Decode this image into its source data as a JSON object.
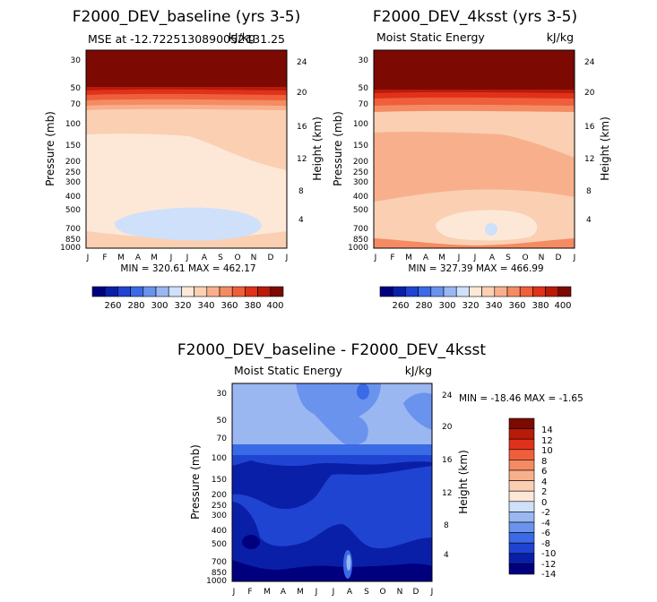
{
  "panels": {
    "baseline": {
      "title": "F2000_DEV_baseline (yrs 3-5)",
      "subtitle_left": "MSE at -12.7225130890052 ",
      "subtitle_mid": "с",
      "subtitle_right": "kJ/kg",
      "subtitle_extra": "131.25",
      "ylabel": "Pressure (mb)",
      "ylabel_right": "Height (km)",
      "minmax": "MIN = 320.61 MAX = 462.17"
    },
    "warm": {
      "title": "F2000_DEV_4ksst (yrs 3-5)",
      "subtitle_left": "Moist Static Energy",
      "subtitle_right": "kJ/kg",
      "ylabel": "Pressure (mb)",
      "ylabel_right": "Height (km)",
      "minmax": "MIN = 327.39 MAX = 466.99"
    },
    "diff": {
      "title": "F2000_DEV_baseline - F2000_DEV_4ksst",
      "subtitle_left": "Moist Static Energy",
      "subtitle_right": "kJ/kg",
      "ylabel": "Pressure (mb)",
      "ylabel_right": "Height (km)",
      "minmax": "MIN = -18.46 MAX =  -1.65"
    }
  },
  "colors": {
    "seq": [
      "#00007f",
      "#0a1fa8",
      "#1f44d2",
      "#3a6ae6",
      "#6a93ee",
      "#9ab7f2",
      "#cfe0fa",
      "#fde8d8",
      "#fbcfb2",
      "#f8b08c",
      "#f48b62",
      "#ef5f3b",
      "#e0321b",
      "#b81b08",
      "#7c0a02"
    ],
    "div": [
      "#00007f",
      "#0a1fa8",
      "#1f44d2",
      "#3a6ae6",
      "#6a93ee",
      "#9ab7f2",
      "#cfe0fa",
      "#fde8d8",
      "#fbcfb2",
      "#f8b08c",
      "#f48b62",
      "#ef5f3b",
      "#e0321b",
      "#b81b08",
      "#7c0a02"
    ]
  },
  "chart_data": [
    {
      "type": "heatmap",
      "name": "baseline",
      "x_ticks": [
        "J",
        "F",
        "M",
        "A",
        "M",
        "J",
        "J",
        "A",
        "S",
        "O",
        "N",
        "D",
        "J"
      ],
      "y_ticks": [
        "30",
        "50",
        "70",
        "100",
        "150",
        "200",
        "250",
        "300",
        "400",
        "500",
        "700",
        "850",
        "1000"
      ],
      "y_right_ticks": [
        "24",
        "20",
        "16",
        "12",
        "8",
        "4"
      ],
      "colorbar": {
        "labels": [
          "260",
          "280",
          "300",
          "320",
          "340",
          "360",
          "380",
          "400"
        ]
      },
      "min": 320.61,
      "max": 462.17
    },
    {
      "type": "heatmap",
      "name": "4ksst",
      "x_ticks": [
        "J",
        "F",
        "M",
        "A",
        "M",
        "J",
        "J",
        "A",
        "S",
        "O",
        "N",
        "D",
        "J"
      ],
      "y_ticks": [
        "30",
        "50",
        "70",
        "100",
        "150",
        "200",
        "250",
        "300",
        "400",
        "500",
        "700",
        "850",
        "1000"
      ],
      "y_right_ticks": [
        "24",
        "20",
        "16",
        "12",
        "8",
        "4"
      ],
      "colorbar": {
        "labels": [
          "260",
          "280",
          "300",
          "320",
          "340",
          "360",
          "380",
          "400"
        ]
      },
      "min": 327.39,
      "max": 466.99
    },
    {
      "type": "heatmap",
      "name": "difference",
      "x_ticks": [
        "J",
        "F",
        "M",
        "A",
        "M",
        "J",
        "J",
        "A",
        "S",
        "O",
        "N",
        "D",
        "J"
      ],
      "y_ticks": [
        "30",
        "50",
        "70",
        "100",
        "150",
        "200",
        "250",
        "300",
        "400",
        "500",
        "700",
        "850",
        "1000"
      ],
      "y_right_ticks": [
        "24",
        "20",
        "16",
        "12",
        "8",
        "4"
      ],
      "colorbar": {
        "labels": [
          "14",
          "12",
          "10",
          "8",
          "6",
          "4",
          "2",
          "0",
          "-2",
          "-4",
          "-6",
          "-8",
          "-10",
          "-12",
          "-14"
        ]
      },
      "min": -18.46,
      "max": -1.65
    }
  ]
}
